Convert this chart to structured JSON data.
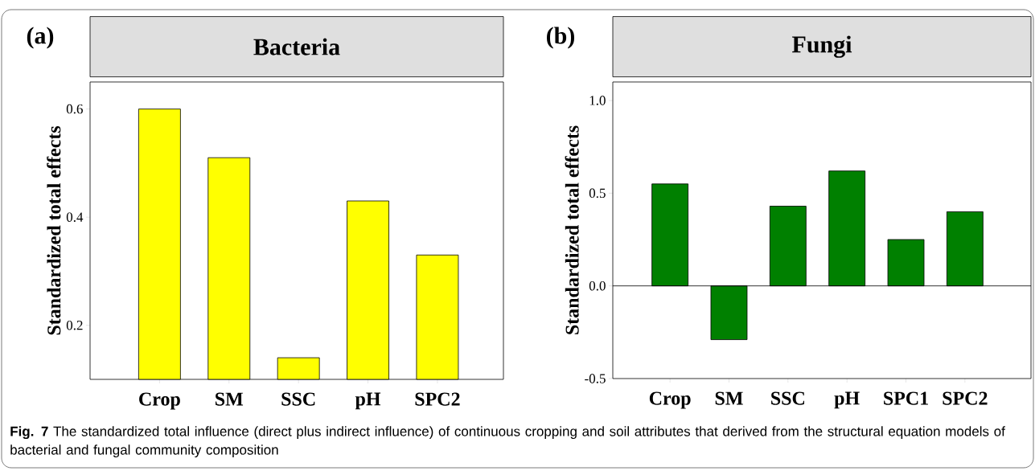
{
  "chart_data": [
    {
      "type": "bar",
      "title": "Bacteria",
      "ylabel": "Standardized total effects",
      "categories": [
        "Crop",
        "SM",
        "SSC",
        "pH",
        "SPC2"
      ],
      "values": [
        0.6,
        0.51,
        0.14,
        0.43,
        0.33
      ],
      "color": "#ffff00",
      "ylim": [
        0.1,
        0.65
      ],
      "yticks": [
        0.2,
        0.4,
        0.6
      ],
      "annotations": [
        "(a)"
      ]
    },
    {
      "type": "bar",
      "title": "Fungi",
      "ylabel": "Standardized total effects",
      "categories": [
        "Crop",
        "SM",
        "SSC",
        "pH",
        "SPC1",
        "SPC2"
      ],
      "values": [
        0.55,
        -0.29,
        0.43,
        0.62,
        0.25,
        0.4
      ],
      "color": "#008000",
      "ylim": [
        -0.5,
        1.1
      ],
      "yticks": [
        -0.5,
        {
          "value": 0,
          "label": "0.0"
        },
        0.5,
        {
          "value": 1,
          "label": "1.0"
        }
      ],
      "annotations": [
        "(b)",
        "**Fig. 7** The standardized total influence (direct plus indirect influence) of continuous cropping and soil attributes that derived from the structural equation models of bacterial and fungal community composition"
      ]
    }
  ]
}
